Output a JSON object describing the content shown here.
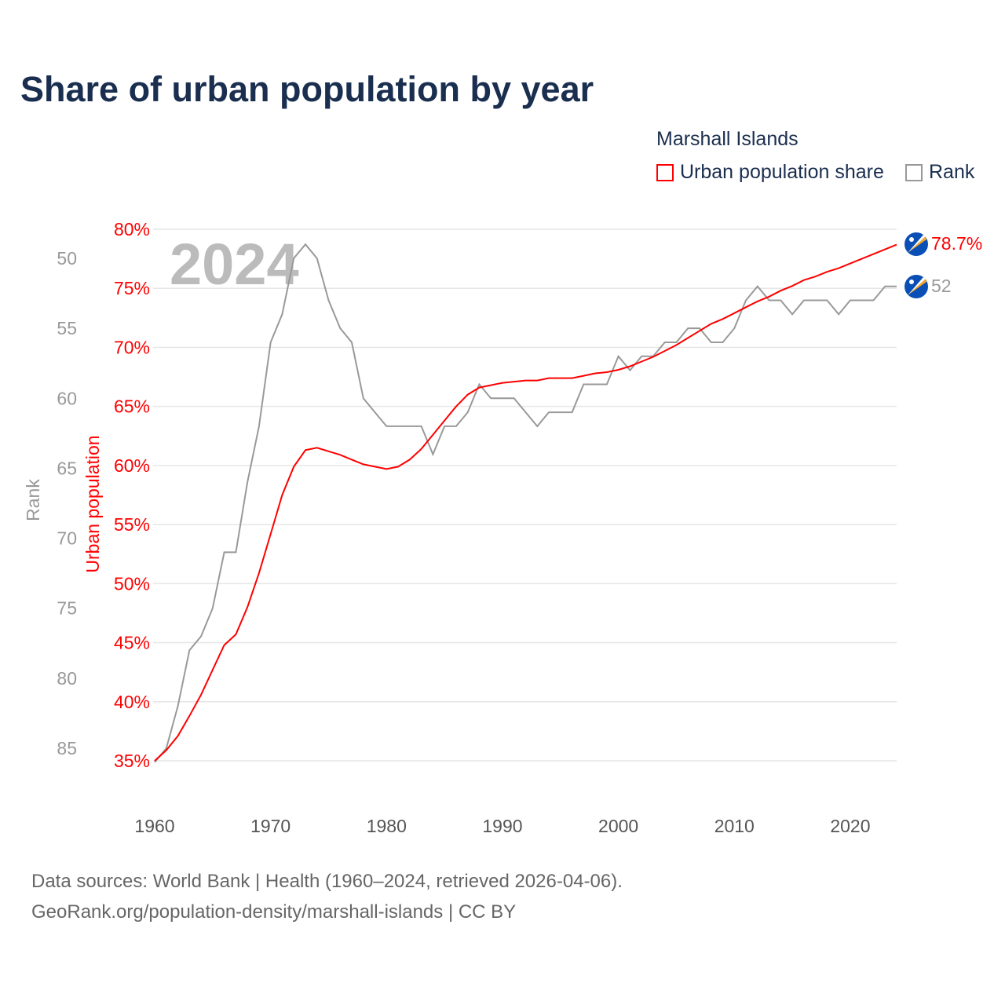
{
  "title": "Share of urban population by year",
  "legend": {
    "country": "Marshall Islands",
    "items": [
      {
        "label": "Urban population share",
        "color": "#ff0000"
      },
      {
        "label": "Rank",
        "color": "#999999"
      }
    ]
  },
  "watermark_year": "2024",
  "end_labels": {
    "urban": "78.7%",
    "rank": "52"
  },
  "footer": {
    "line1": "Data sources: World Bank | Health (1960–2024, retrieved 2026-04-06).",
    "line2": "GeoRank.org/population-density/marshall-islands | CC BY"
  },
  "flag_icon": "marshall-islands-flag",
  "chart_data": {
    "type": "line",
    "title": "Share of urban population by year",
    "xlabel": "",
    "ylabel_left": "Urban population",
    "ylabel_rank": "Rank",
    "xlim": [
      1960,
      2024
    ],
    "ylim_urban": [
      35,
      80
    ],
    "ylim_rank": [
      50,
      85
    ],
    "rank_inverted": true,
    "x_ticks": [
      "1960",
      "1970",
      "1980",
      "1990",
      "2000",
      "2010",
      "2020"
    ],
    "urban_ticks": [
      "35%",
      "40%",
      "45%",
      "50%",
      "55%",
      "60%",
      "65%",
      "70%",
      "75%",
      "80%"
    ],
    "rank_ticks": [
      "50",
      "55",
      "60",
      "65",
      "70",
      "75",
      "80",
      "85"
    ],
    "x": [
      1960,
      1961,
      1962,
      1963,
      1964,
      1965,
      1966,
      1967,
      1968,
      1969,
      1970,
      1971,
      1972,
      1973,
      1974,
      1975,
      1976,
      1977,
      1978,
      1979,
      1980,
      1981,
      1982,
      1983,
      1984,
      1985,
      1986,
      1987,
      1988,
      1989,
      1990,
      1991,
      1992,
      1993,
      1994,
      1995,
      1996,
      1997,
      1998,
      1999,
      2000,
      2001,
      2002,
      2003,
      2004,
      2005,
      2006,
      2007,
      2008,
      2009,
      2010,
      2011,
      2012,
      2013,
      2014,
      2015,
      2016,
      2017,
      2018,
      2019,
      2020,
      2021,
      2022,
      2023,
      2024
    ],
    "series": [
      {
        "name": "Urban population share",
        "color": "#ff0000",
        "values": [
          35.0,
          35.9,
          37.1,
          38.8,
          40.6,
          42.7,
          44.8,
          45.7,
          48.0,
          50.9,
          54.2,
          57.5,
          59.9,
          61.3,
          61.5,
          61.2,
          60.9,
          60.5,
          60.1,
          59.9,
          59.7,
          59.9,
          60.5,
          61.4,
          62.6,
          63.8,
          65.0,
          66.0,
          66.6,
          66.8,
          67.0,
          67.1,
          67.2,
          67.2,
          67.4,
          67.4,
          67.4,
          67.6,
          67.8,
          67.9,
          68.1,
          68.4,
          68.8,
          69.2,
          69.7,
          70.2,
          70.8,
          71.4,
          72.0,
          72.4,
          72.9,
          73.4,
          73.9,
          74.3,
          74.8,
          75.2,
          75.7,
          76.0,
          76.4,
          76.7,
          77.1,
          77.5,
          77.9,
          78.3,
          78.7
        ]
      },
      {
        "name": "Rank",
        "color": "#999999",
        "values": [
          86,
          85,
          82,
          78,
          77,
          75,
          71,
          71,
          66,
          62,
          56,
          54,
          50,
          49,
          50,
          53,
          55,
          56,
          60,
          61,
          62,
          62,
          62,
          62,
          64,
          62,
          62,
          61,
          59,
          60,
          60,
          60,
          61,
          62,
          61,
          61,
          61,
          59,
          59,
          59,
          57,
          58,
          57,
          57,
          56,
          56,
          55,
          55,
          56,
          56,
          55,
          53,
          52,
          53,
          53,
          54,
          53,
          53,
          53,
          54,
          53,
          53,
          53,
          52,
          52
        ]
      }
    ]
  }
}
